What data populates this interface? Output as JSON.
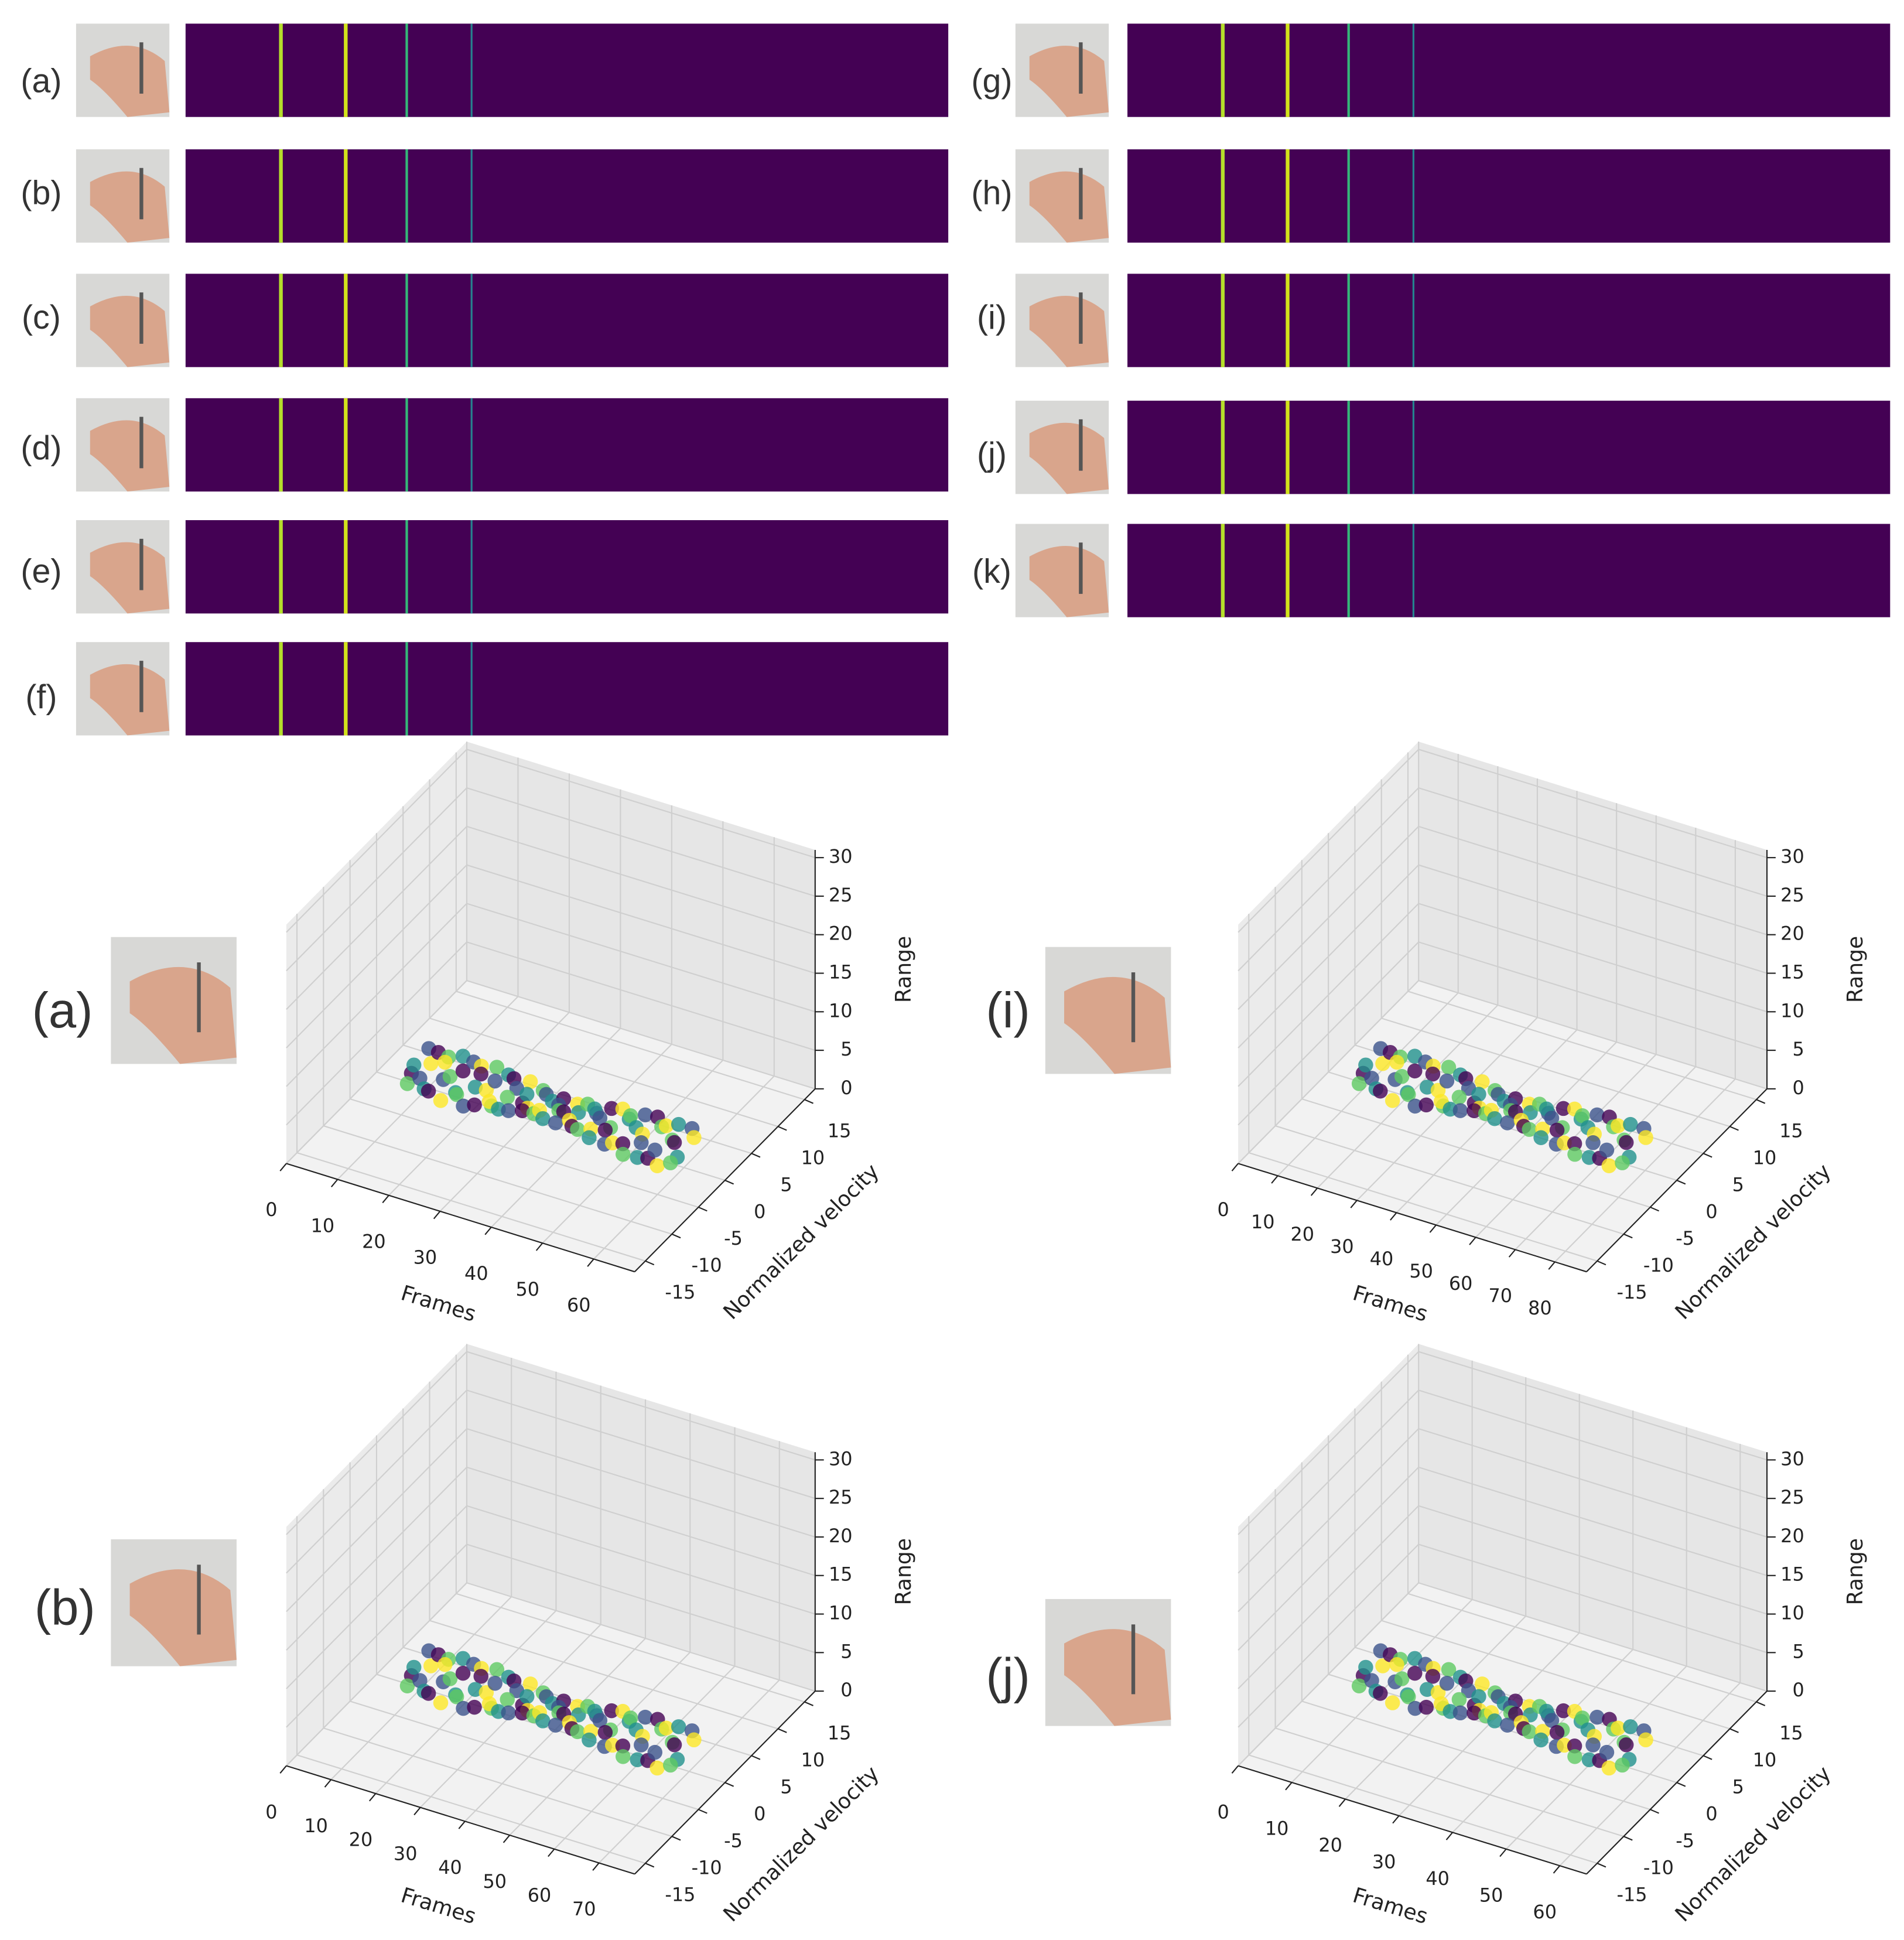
{
  "spectrograms": [
    {
      "label": "(a)"
    },
    {
      "label": "(b)"
    },
    {
      "label": "(c)"
    },
    {
      "label": "(d)"
    },
    {
      "label": "(e)"
    },
    {
      "label": "(f)"
    },
    {
      "label": "(g)"
    },
    {
      "label": "(h)"
    },
    {
      "label": "(i)"
    },
    {
      "label": "(j)"
    },
    {
      "label": "(k)"
    }
  ],
  "plots": [
    {
      "label": "(a)",
      "x_label": "Frames",
      "y_label": "Normalized velocity",
      "z_label": "Range",
      "xlim": [
        0,
        68
      ],
      "xticks": [
        0,
        10,
        20,
        30,
        40,
        50,
        60
      ],
      "ylim": [
        -17,
        17
      ],
      "yticks": [
        -15,
        -10,
        -5,
        0,
        5,
        10,
        15
      ],
      "zlim": [
        0,
        31
      ],
      "zticks": [
        0,
        5,
        10,
        15,
        20,
        25,
        30
      ]
    },
    {
      "label": "(i)",
      "x_label": "Frames",
      "y_label": "Normalized velocity",
      "z_label": "Range",
      "xlim": [
        0,
        88
      ],
      "xticks": [
        0,
        10,
        20,
        30,
        40,
        50,
        60,
        70,
        80
      ],
      "ylim": [
        -17,
        17
      ],
      "yticks": [
        -15,
        -10,
        -5,
        0,
        5,
        10,
        15
      ],
      "zlim": [
        0,
        31
      ],
      "zticks": [
        0,
        5,
        10,
        15,
        20,
        25,
        30
      ]
    },
    {
      "label": "(b)",
      "x_label": "Frames",
      "y_label": "Normalized velocity",
      "z_label": "Range",
      "xlim": [
        0,
        78
      ],
      "xticks": [
        0,
        10,
        20,
        30,
        40,
        50,
        60,
        70
      ],
      "ylim": [
        -17,
        17
      ],
      "yticks": [
        -15,
        -10,
        -5,
        0,
        5,
        10,
        15
      ],
      "zlim": [
        0,
        31
      ],
      "zticks": [
        0,
        5,
        10,
        15,
        20,
        25,
        30
      ]
    },
    {
      "label": "(j)",
      "x_label": "Frames",
      "y_label": "Normalized velocity",
      "z_label": "Range",
      "xlim": [
        0,
        65
      ],
      "xticks": [
        0,
        10,
        20,
        30,
        40,
        50,
        60
      ],
      "ylim": [
        -17,
        17
      ],
      "yticks": [
        -15,
        -10,
        -5,
        0,
        5,
        10,
        15
      ],
      "zlim": [
        0,
        31
      ],
      "zticks": [
        0,
        5,
        10,
        15,
        20,
        25,
        30
      ]
    }
  ]
}
